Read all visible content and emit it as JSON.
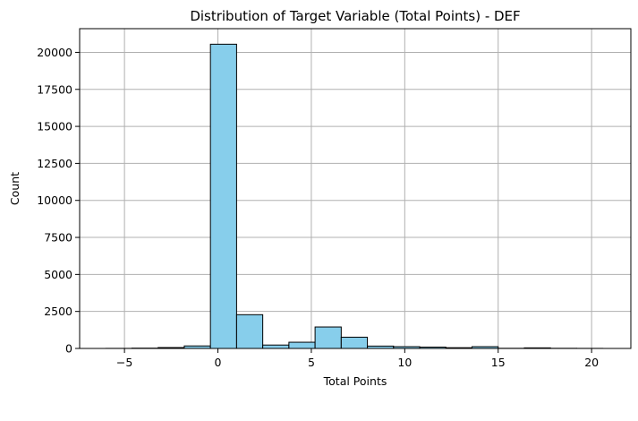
{
  "chart_data": {
    "type": "bar",
    "title": "Distribution of Target Variable (Total Points) - DEF",
    "xlabel": "Total Points",
    "ylabel": "Count",
    "xlim": [
      -7.4,
      22.1
    ],
    "ylim": [
      0,
      21600
    ],
    "xticks": [
      -5,
      0,
      5,
      10,
      15,
      20
    ],
    "yticks": [
      0,
      2500,
      5000,
      7500,
      10000,
      12500,
      15000,
      17500,
      20000
    ],
    "grid": true,
    "legend": "none",
    "bin_edges": [
      -6,
      -4.6,
      -3.2,
      -1.8,
      -0.4,
      1.0,
      2.4,
      3.8,
      5.2,
      6.6,
      8.0,
      9.4,
      10.8,
      12.2,
      13.6,
      15.0,
      16.4,
      17.8,
      19.2,
      20.6
    ],
    "counts": [
      5,
      20,
      60,
      170,
      20550,
      2280,
      230,
      420,
      1450,
      760,
      160,
      120,
      90,
      50,
      120,
      10,
      40,
      10,
      5
    ],
    "bar_color": "#87ceeb",
    "edge_color": "#000000",
    "grid_color": "#b0b0b0"
  }
}
